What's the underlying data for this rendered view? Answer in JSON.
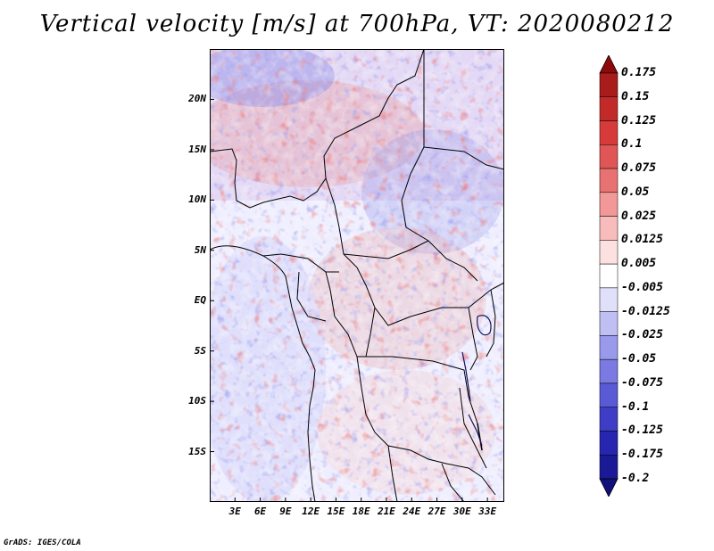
{
  "title": "Vertical velocity [m/s] at 700hPa, VT: 2020080212",
  "credit": "GrADS: IGES/COLA",
  "map": {
    "lat_labels": [
      "20N",
      "15N",
      "10N",
      "5N",
      "EQ",
      "5S",
      "10S",
      "15S"
    ],
    "lon_labels": [
      "3E",
      "6E",
      "9E",
      "12E",
      "15E",
      "18E",
      "21E",
      "24E",
      "27E",
      "30E",
      "33E"
    ],
    "lat_range": [
      -20,
      25
    ],
    "lon_range": [
      0,
      35
    ]
  },
  "colorbar": {
    "levels": [
      "0.175",
      "0.15",
      "0.125",
      "0.1",
      "0.075",
      "0.05",
      "0.025",
      "0.0125",
      "0.005",
      "-0.005",
      "-0.0125",
      "-0.025",
      "-0.05",
      "-0.075",
      "-0.1",
      "-0.125",
      "-0.175",
      "-0.2"
    ],
    "colors": [
      "#8c0a0a",
      "#a81c1c",
      "#c22a2a",
      "#d63a3a",
      "#e05555",
      "#e87272",
      "#f29898",
      "#f8bcbc",
      "#fde0e0",
      "#ffffff",
      "#e0e0fb",
      "#bfbff4",
      "#9a9aec",
      "#7a7ae2",
      "#5a5ad6",
      "#3d3dc6",
      "#2626b0",
      "#1a1a96",
      "#10107a"
    ]
  }
}
